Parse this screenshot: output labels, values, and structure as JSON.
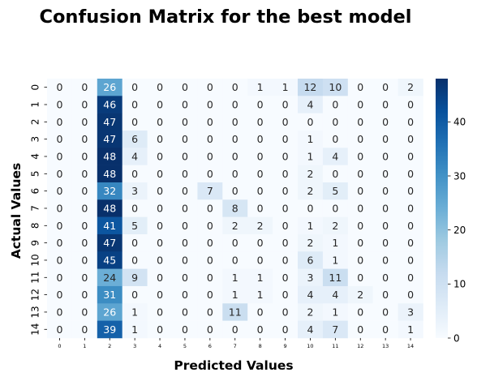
{
  "chart_data": {
    "type": "heatmap",
    "title": "Confusion Matrix for the best model",
    "xlabel": "Predicted Values",
    "ylabel": "Actual Values",
    "x_ticks": [
      "0",
      "1",
      "2",
      "3",
      "4",
      "5",
      "6",
      "7",
      "8",
      "9",
      "10",
      "11",
      "12",
      "13",
      "14"
    ],
    "y_ticks": [
      "0",
      "1",
      "2",
      "3",
      "4",
      "5",
      "6",
      "7",
      "8",
      "9",
      "10",
      "11",
      "12",
      "13",
      "14"
    ],
    "matrix": [
      [
        0,
        0,
        26,
        0,
        0,
        0,
        0,
        0,
        1,
        1,
        12,
        10,
        0,
        0,
        2
      ],
      [
        0,
        0,
        46,
        0,
        0,
        0,
        0,
        0,
        0,
        0,
        4,
        0,
        0,
        0,
        0
      ],
      [
        0,
        0,
        47,
        0,
        0,
        0,
        0,
        0,
        0,
        0,
        0,
        0,
        0,
        0,
        0
      ],
      [
        0,
        0,
        47,
        6,
        0,
        0,
        0,
        0,
        0,
        0,
        1,
        0,
        0,
        0,
        0
      ],
      [
        0,
        0,
        48,
        4,
        0,
        0,
        0,
        0,
        0,
        0,
        1,
        4,
        0,
        0,
        0
      ],
      [
        0,
        0,
        48,
        0,
        0,
        0,
        0,
        0,
        0,
        0,
        2,
        0,
        0,
        0,
        0
      ],
      [
        0,
        0,
        32,
        3,
        0,
        0,
        7,
        0,
        0,
        0,
        2,
        5,
        0,
        0,
        0
      ],
      [
        0,
        0,
        48,
        0,
        0,
        0,
        0,
        8,
        0,
        0,
        0,
        0,
        0,
        0,
        0
      ],
      [
        0,
        0,
        41,
        5,
        0,
        0,
        0,
        2,
        2,
        0,
        1,
        2,
        0,
        0,
        0
      ],
      [
        0,
        0,
        47,
        0,
        0,
        0,
        0,
        0,
        0,
        0,
        2,
        1,
        0,
        0,
        0
      ],
      [
        0,
        0,
        45,
        0,
        0,
        0,
        0,
        0,
        0,
        0,
        6,
        1,
        0,
        0,
        0
      ],
      [
        0,
        0,
        24,
        9,
        0,
        0,
        0,
        1,
        1,
        0,
        3,
        11,
        0,
        0,
        0
      ],
      [
        0,
        0,
        31,
        0,
        0,
        0,
        0,
        1,
        1,
        0,
        4,
        4,
        2,
        0,
        0
      ],
      [
        0,
        0,
        26,
        1,
        0,
        0,
        0,
        11,
        0,
        0,
        2,
        1,
        0,
        0,
        3
      ],
      [
        0,
        0,
        39,
        1,
        0,
        0,
        0,
        0,
        0,
        0,
        4,
        7,
        0,
        0,
        1
      ]
    ],
    "colorbar": {
      "colormap": "Blues",
      "range": [
        0,
        48
      ],
      "ticks": [
        0,
        10,
        20,
        30,
        40
      ]
    },
    "colors": {
      "low": "#f7fbff",
      "high": "#08306b"
    }
  }
}
